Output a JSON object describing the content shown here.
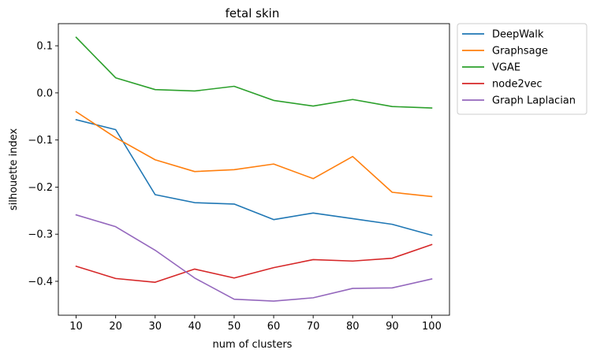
{
  "chart_data": {
    "type": "line",
    "title": "fetal skin",
    "xlabel": "num of clusters",
    "ylabel": "silhouette index",
    "x": [
      10,
      20,
      30,
      40,
      50,
      60,
      70,
      80,
      90,
      100
    ],
    "xticks": [
      "10",
      "20",
      "30",
      "40",
      "50",
      "60",
      "70",
      "80",
      "90",
      "100"
    ],
    "yticks": [
      0.1,
      0.0,
      -0.1,
      -0.2,
      -0.3,
      -0.4
    ],
    "ytick_labels": [
      "0.1",
      "0.0",
      "−0.1",
      "−0.2",
      "−0.3",
      "−0.4"
    ],
    "xlim": [
      5.5,
      104.5
    ],
    "ylim": [
      -0.472,
      0.147
    ],
    "grid": false,
    "legend_position": "outside-upper-right",
    "series": [
      {
        "name": "DeepWalk",
        "color": "#1f77b4",
        "values": [
          -0.057,
          -0.078,
          -0.216,
          -0.233,
          -0.236,
          -0.269,
          -0.255,
          -0.267,
          -0.279,
          -0.302
        ]
      },
      {
        "name": "Graphsage",
        "color": "#ff7f0e",
        "values": [
          -0.04,
          -0.095,
          -0.142,
          -0.167,
          -0.163,
          -0.151,
          -0.182,
          -0.135,
          -0.211,
          -0.22
        ]
      },
      {
        "name": "VGAE",
        "color": "#2ca02c",
        "values": [
          0.118,
          0.032,
          0.007,
          0.004,
          0.014,
          -0.016,
          -0.028,
          -0.014,
          -0.029,
          -0.032
        ]
      },
      {
        "name": "node2vec",
        "color": "#d62728",
        "values": [
          -0.368,
          -0.394,
          -0.402,
          -0.374,
          -0.393,
          -0.371,
          -0.354,
          -0.357,
          -0.351,
          -0.322
        ]
      },
      {
        "name": "Graph Laplacian",
        "color": "#9467bd",
        "values": [
          -0.259,
          -0.284,
          -0.334,
          -0.393,
          -0.438,
          -0.442,
          -0.435,
          -0.415,
          -0.414,
          -0.395
        ]
      }
    ]
  }
}
